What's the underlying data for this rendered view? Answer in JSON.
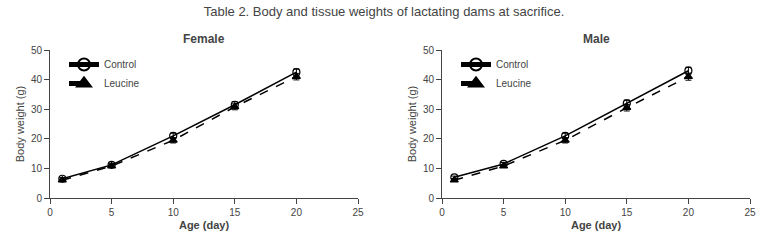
{
  "title": "Table 2. Body and tissue weights of lactating dams at sacrifice.",
  "chart_data": [
    {
      "type": "line",
      "title": "Female",
      "x_label": "Age (day)",
      "y_label": "Body weight (g)",
      "x": [
        1,
        5,
        10,
        15,
        20
      ],
      "xlim": [
        0,
        25
      ],
      "xticks": [
        0,
        5,
        10,
        15,
        20,
        25
      ],
      "ylim": [
        0,
        50
      ],
      "yticks": [
        0,
        10,
        20,
        30,
        40,
        50
      ],
      "grid": false,
      "legend": "upper left",
      "series": [
        {
          "name": "Control",
          "color": "#000000",
          "marker": "circle-open",
          "line_style": "solid",
          "values": [
            6.5,
            11.2,
            21.0,
            31.5,
            42.5
          ],
          "error": [
            0.4,
            0.5,
            0.9,
            1.0,
            1.1
          ]
        },
        {
          "name": "Leucine",
          "color": "#000000",
          "marker": "triangle-up",
          "line_style": "dash",
          "values": [
            6.0,
            10.8,
            19.5,
            30.8,
            41.0
          ],
          "error": [
            0.4,
            0.5,
            0.9,
            1.0,
            1.1
          ]
        }
      ]
    },
    {
      "type": "line",
      "title": "Male",
      "x_label": "Age (day)",
      "y_label": "Body weight (g)",
      "x": [
        1,
        5,
        10,
        15,
        20
      ],
      "xlim": [
        0,
        25
      ],
      "xticks": [
        0,
        5,
        10,
        15,
        20,
        25
      ],
      "ylim": [
        0,
        50
      ],
      "yticks": [
        0,
        10,
        20,
        30,
        40,
        50
      ],
      "grid": false,
      "legend": "upper left",
      "series": [
        {
          "name": "Control",
          "color": "#000000",
          "marker": "circle-open",
          "line_style": "solid",
          "values": [
            7.0,
            11.5,
            21.0,
            32.0,
            43.0
          ],
          "error": [
            0.4,
            0.5,
            0.9,
            1.1,
            1.2
          ]
        },
        {
          "name": "Leucine",
          "color": "#000000",
          "marker": "triangle-up",
          "line_style": "dash",
          "values": [
            6.0,
            10.8,
            19.5,
            30.5,
            41.0
          ],
          "error": [
            0.4,
            0.5,
            0.9,
            1.1,
            1.2
          ]
        }
      ]
    }
  ]
}
